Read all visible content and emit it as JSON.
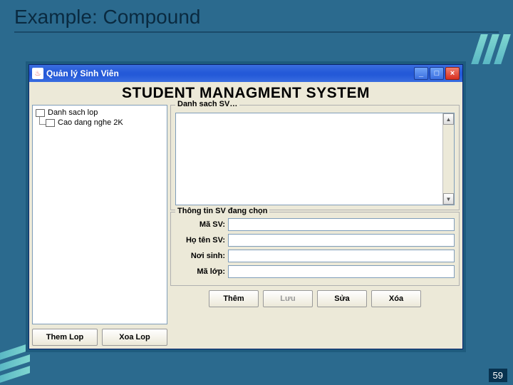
{
  "slide": {
    "title": "Example: Compound",
    "page_number": "59",
    "bg_color": "#2b6a8e",
    "stripe_color_a": "#7fd6d0",
    "stripe_color_b": "#5ab8c4"
  },
  "window": {
    "title": "Quản lý Sinh Viên",
    "heading": "STUDENT MANAGMENT SYSTEM",
    "titlebar_color": "#2459d8",
    "bg_color": "#ece9d8",
    "btn_minimize": "_",
    "btn_maximize": "□",
    "btn_close": "×"
  },
  "tree": {
    "root_label": "Danh sach lop",
    "child_label": "Cao dang nghe 2K"
  },
  "left_buttons": {
    "add": "Them Lop",
    "remove": "Xoa Lop"
  },
  "list_group": {
    "legend": "Danh sach SV…"
  },
  "info_group": {
    "legend": "Thông tin SV đang chọn",
    "fields": {
      "ma_sv": {
        "label": "Mã SV:",
        "value": ""
      },
      "ho_ten": {
        "label": "Họ tên SV:",
        "value": ""
      },
      "noi_sinh": {
        "label": "Nơi sinh:",
        "value": ""
      },
      "ma_lop": {
        "label": "Mã lớp:",
        "value": ""
      }
    }
  },
  "bottom_buttons": {
    "add": "Thêm",
    "save": "Lưu",
    "edit": "Sửa",
    "delete": "Xóa"
  }
}
